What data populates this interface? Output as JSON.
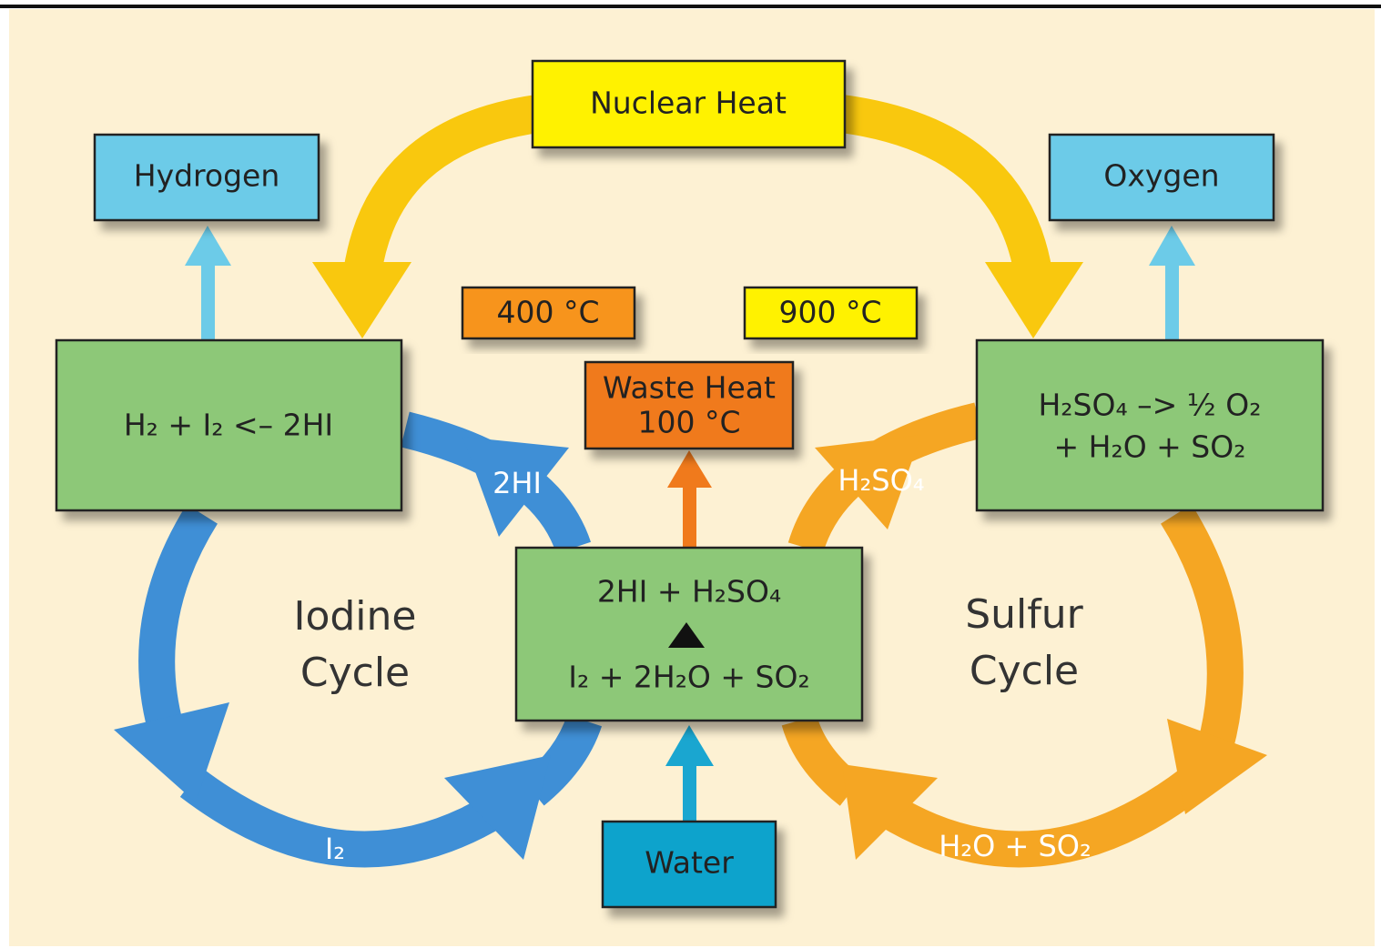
{
  "nodes": [
    {
      "label": [
        "Nuclear Heat"
      ]
    },
    {
      "label": [
        "Hydrogen"
      ]
    },
    {
      "label": [
        "Oxygen"
      ]
    },
    {
      "label": [
        "400 °C"
      ]
    },
    {
      "label": [
        "900 °C"
      ]
    },
    {
      "label": [
        "Waste Heat",
        "100 °C"
      ]
    },
    {
      "label": [
        "H₂ + I₂ <– 2HI"
      ]
    },
    {
      "label": [
        "H₂SO₄ –> ½ O₂",
        "+ H₂O + SO₂"
      ]
    },
    {
      "label": [
        "2HI + H₂SO₄",
        "I₂ + 2H₂O + SO₂"
      ]
    },
    {
      "label": [
        "Water"
      ]
    }
  ],
  "cycles": [
    {
      "label": [
        "Iodine",
        "Cycle"
      ]
    },
    {
      "label": [
        "Sulfur",
        "Cycle"
      ]
    }
  ],
  "flows": [
    "2HI",
    "H₂SO₄",
    "I₂",
    "H₂O + SO₂"
  ]
}
